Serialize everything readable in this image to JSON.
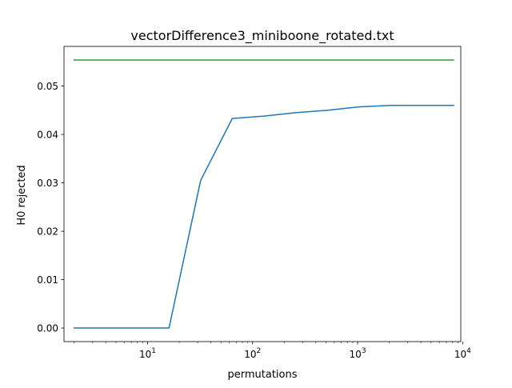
{
  "chart_data": {
    "type": "line",
    "title": "vectorDifference3_miniboone_rotated.txt",
    "xlabel": "permutations",
    "ylabel": "H0 rejected",
    "xscale": "log",
    "xlim": [
      1.6,
      9600
    ],
    "ylim": [
      -0.0028,
      0.0582
    ],
    "grid": false,
    "legend": "none",
    "x_ticks": [
      {
        "value": 10,
        "base": "10",
        "exp": "1"
      },
      {
        "value": 100,
        "base": "10",
        "exp": "2"
      },
      {
        "value": 1000,
        "base": "10",
        "exp": "3"
      },
      {
        "value": 10000,
        "base": "10",
        "exp": "4"
      }
    ],
    "x_minor_ticks": [
      2,
      3,
      4,
      5,
      6,
      7,
      8,
      9,
      20,
      30,
      40,
      50,
      60,
      70,
      80,
      90,
      200,
      300,
      400,
      500,
      600,
      700,
      800,
      900,
      2000,
      3000,
      4000,
      5000,
      6000,
      7000,
      8000,
      9000
    ],
    "y_ticks": [
      {
        "value": 0.0,
        "label": "0.00"
      },
      {
        "value": 0.01,
        "label": "0.01"
      },
      {
        "value": 0.02,
        "label": "0.02"
      },
      {
        "value": 0.03,
        "label": "0.03"
      },
      {
        "value": 0.04,
        "label": "0.04"
      },
      {
        "value": 0.05,
        "label": "0.05"
      }
    ],
    "series": [
      {
        "color": "#1f77b4",
        "x": [
          2,
          4,
          8,
          16,
          32,
          64,
          128,
          256,
          512,
          1024,
          2048,
          4096,
          8192
        ],
        "y": [
          0.0,
          0.0,
          0.0,
          0.0,
          0.0305,
          0.0433,
          0.0438,
          0.0445,
          0.045,
          0.0457,
          0.046,
          0.046,
          0.046
        ]
      },
      {
        "color": "#2ca02c",
        "x": [
          2,
          4,
          8,
          16,
          32,
          64,
          128,
          256,
          512,
          1024,
          2048,
          4096,
          8192
        ],
        "y": [
          0.0554,
          0.0554,
          0.0554,
          0.0554,
          0.0554,
          0.0554,
          0.0554,
          0.0554,
          0.0554,
          0.0554,
          0.0554,
          0.0554,
          0.0554
        ]
      }
    ]
  }
}
